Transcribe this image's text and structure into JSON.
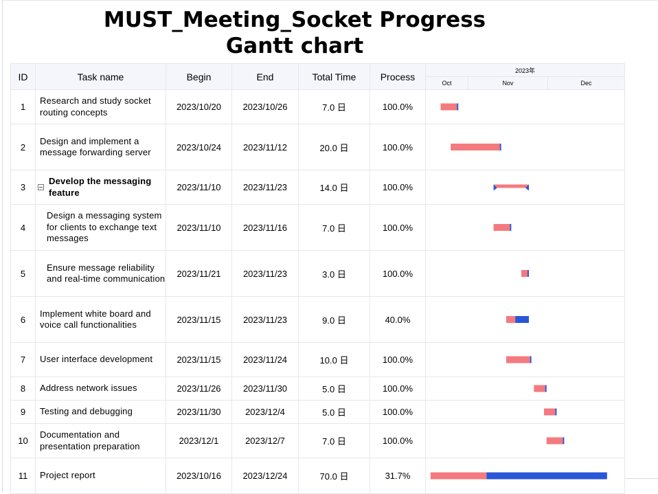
{
  "title_line1": "MUST_Meeting_Socket Progress",
  "title_line2": "Gantt chart",
  "columns": {
    "id": "ID",
    "name": "Task name",
    "begin": "Begin",
    "end": "End",
    "total": "Total Time",
    "process": "Process"
  },
  "timeline": {
    "year": "2023年",
    "months": [
      "Oct",
      "Nov",
      "Dec"
    ]
  },
  "colors": {
    "planned": "#f47a7f",
    "progress": "#2a56d8",
    "header_bg": "#f4f6fb",
    "grid_line": "#e4e7ec"
  },
  "chart_data": {
    "type": "gantt",
    "title": "MUST_Meeting_Socket Progress Gantt chart",
    "time_axis": {
      "year": "2023年",
      "months": [
        "Oct",
        "Nov",
        "Dec"
      ],
      "start": "2023/10/14",
      "end": "2023/12/31"
    },
    "tasks": [
      {
        "id": "1",
        "name": "Research and study socket routing concepts",
        "begin": "2023/10/20",
        "end": "2023/10/26",
        "total": "7.0 日",
        "process": "100.0%",
        "progress": 1.0,
        "level": 0,
        "group": false
      },
      {
        "id": "2",
        "name": "Design and implement a message forwarding server",
        "begin": "2023/10/24",
        "end": "2023/11/12",
        "total": "20.0 日",
        "process": "100.0%",
        "progress": 1.0,
        "level": 0,
        "group": false
      },
      {
        "id": "3",
        "name": "Develop the messaging feature",
        "begin": "2023/11/10",
        "end": "2023/11/23",
        "total": "14.0 日",
        "process": "100.0%",
        "progress": 1.0,
        "level": 0,
        "group": true
      },
      {
        "id": "4",
        "name": "Design a messaging system for clients to exchange text messages",
        "begin": "2023/11/10",
        "end": "2023/11/16",
        "total": "7.0 日",
        "process": "100.0%",
        "progress": 1.0,
        "level": 1,
        "group": false
      },
      {
        "id": "5",
        "name": "Ensure message reliability and real-time communication",
        "begin": "2023/11/21",
        "end": "2023/11/23",
        "total": "3.0 日",
        "process": "100.0%",
        "progress": 1.0,
        "level": 1,
        "group": false
      },
      {
        "id": "6",
        "name": "Implement white board and voice call functionalities",
        "begin": "2023/11/15",
        "end": "2023/11/23",
        "total": "9.0 日",
        "process": "40.0%",
        "progress": 0.4,
        "level": 0,
        "group": false
      },
      {
        "id": "7",
        "name": "User interface development",
        "begin": "2023/11/15",
        "end": "2023/11/24",
        "total": "10.0 日",
        "process": "100.0%",
        "progress": 1.0,
        "level": 0,
        "group": false
      },
      {
        "id": "8",
        "name": "Address network issues",
        "begin": "2023/11/26",
        "end": "2023/11/30",
        "total": "5.0 日",
        "process": "100.0%",
        "progress": 1.0,
        "level": 0,
        "group": false
      },
      {
        "id": "9",
        "name": "Testing and debugging",
        "begin": "2023/11/30",
        "end": "2023/12/4",
        "total": "5.0 日",
        "process": "100.0%",
        "progress": 1.0,
        "level": 0,
        "group": false
      },
      {
        "id": "10",
        "name": "Documentation and presentation preparation",
        "begin": "2023/12/1",
        "end": "2023/12/7",
        "total": "7.0 日",
        "process": "100.0%",
        "progress": 1.0,
        "level": 0,
        "group": false
      },
      {
        "id": "11",
        "name": "Project report",
        "begin": "2023/10/16",
        "end": "2023/12/24",
        "total": "70.0 日",
        "process": "31.7%",
        "progress": 0.317,
        "level": 0,
        "group": false
      }
    ]
  }
}
